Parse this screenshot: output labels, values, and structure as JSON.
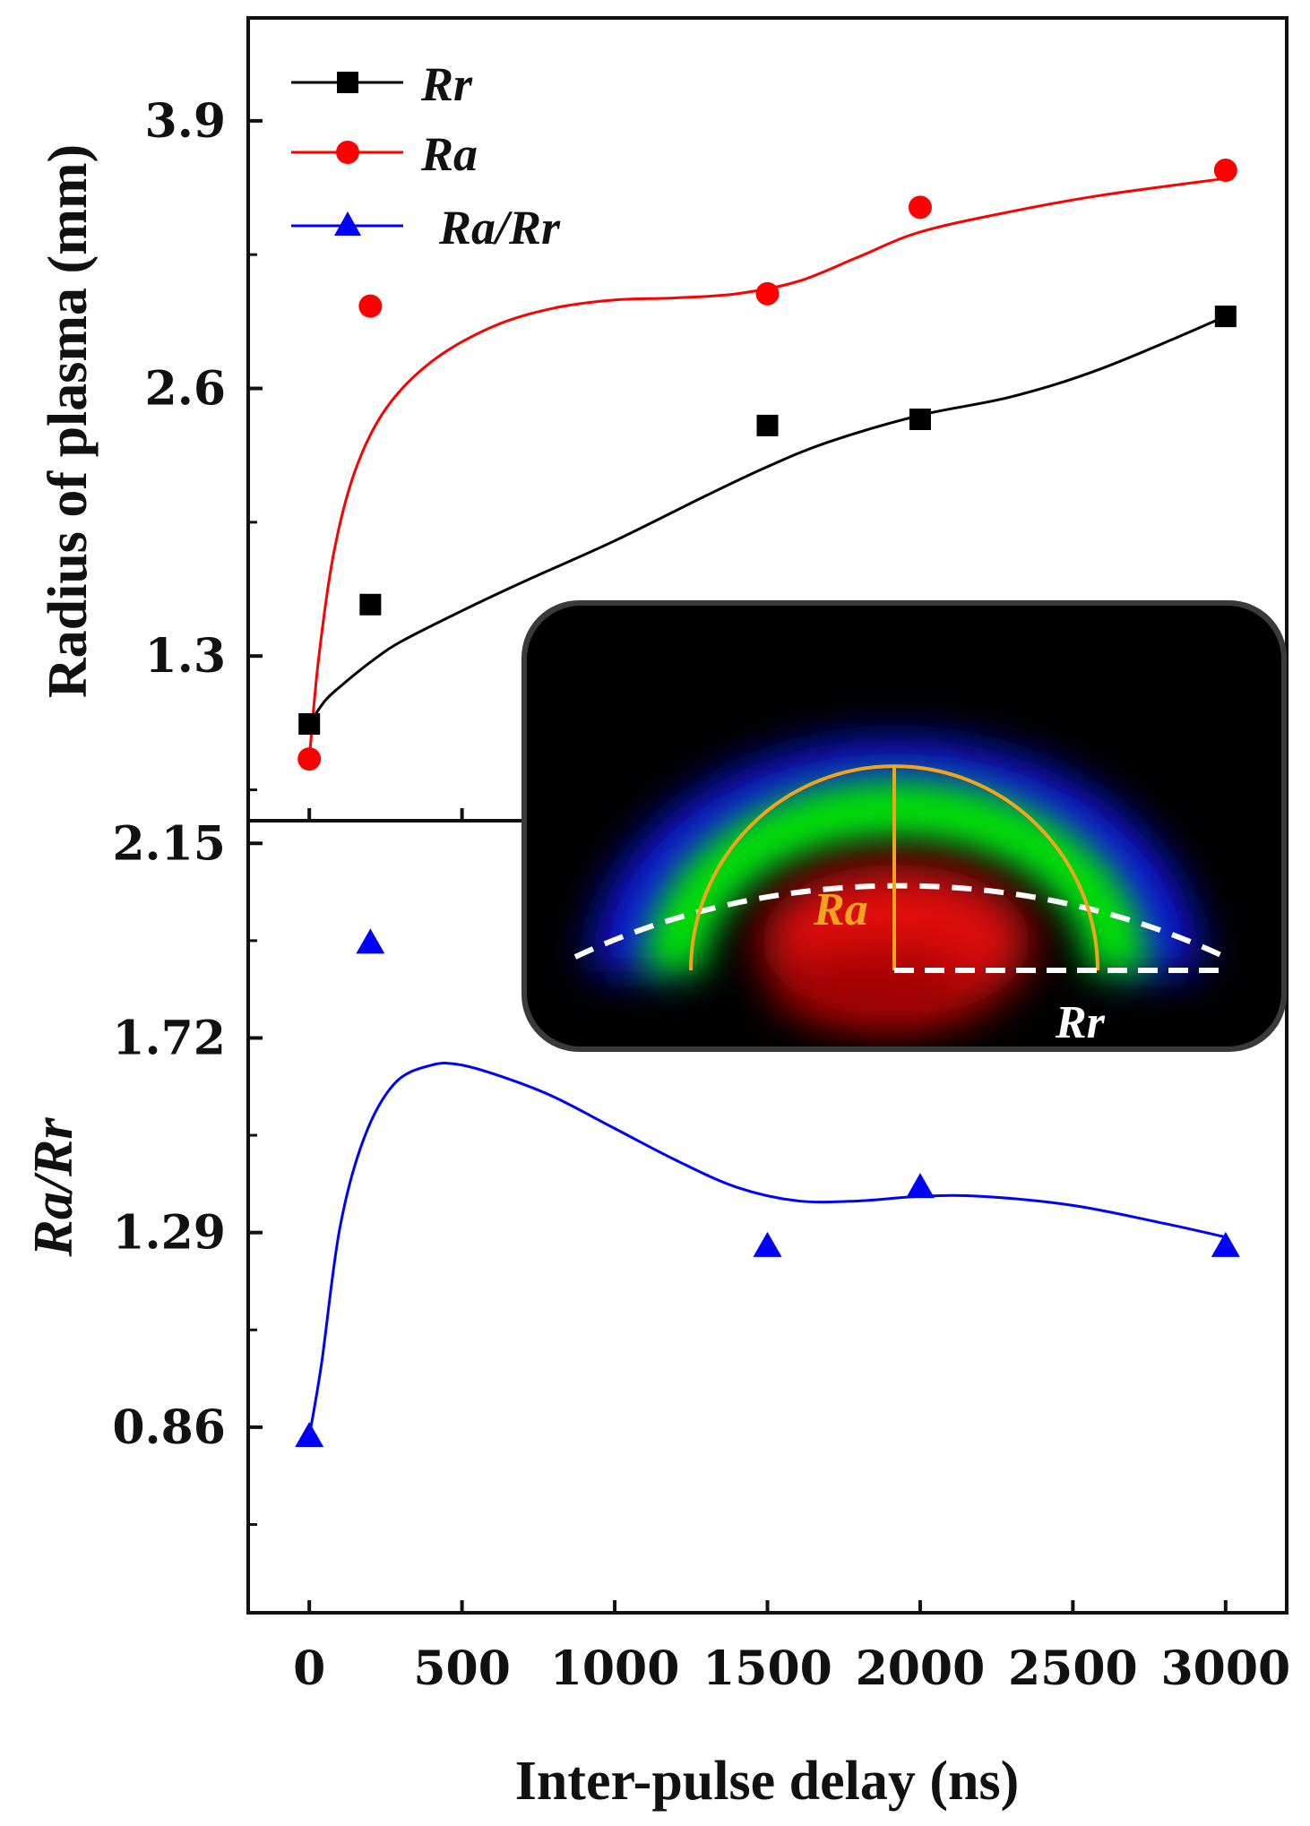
{
  "chart_data": [
    {
      "type": "scatter",
      "panel": "top",
      "ylabel": "Radius of plasma (mm)",
      "ylim": [
        0.5,
        4.4
      ],
      "yticks": [
        "1.3",
        "2.6",
        "3.9"
      ],
      "series": [
        {
          "name": "Rr",
          "color": "#000000",
          "marker": "square",
          "x": [
            0,
            200,
            1500,
            2000,
            3000
          ],
          "values": [
            0.97,
            1.55,
            2.42,
            2.45,
            2.95
          ],
          "fit": [
            [
              0,
              0.97
            ],
            [
              50,
              1.08
            ],
            [
              100,
              1.15
            ],
            [
              200,
              1.27
            ],
            [
              300,
              1.37
            ],
            [
              500,
              1.52
            ],
            [
              700,
              1.66
            ],
            [
              1000,
              1.86
            ],
            [
              1300,
              2.08
            ],
            [
              1500,
              2.22
            ],
            [
              1700,
              2.34
            ],
            [
              2000,
              2.47
            ],
            [
              2300,
              2.56
            ],
            [
              2600,
              2.7
            ],
            [
              3000,
              2.95
            ]
          ]
        },
        {
          "name": "Ra",
          "color": "#ff0000",
          "marker": "circle",
          "x": [
            0,
            200,
            1500,
            2000,
            3000
          ],
          "values": [
            0.8,
            3.0,
            3.06,
            3.48,
            3.66
          ],
          "fit": [
            [
              0,
              0.8
            ],
            [
              30,
              1.28
            ],
            [
              80,
              1.8
            ],
            [
              150,
              2.2
            ],
            [
              250,
              2.5
            ],
            [
              400,
              2.73
            ],
            [
              600,
              2.9
            ],
            [
              800,
              2.99
            ],
            [
              1000,
              3.03
            ],
            [
              1200,
              3.04
            ],
            [
              1400,
              3.06
            ],
            [
              1600,
              3.12
            ],
            [
              1800,
              3.24
            ],
            [
              2000,
              3.36
            ],
            [
              2300,
              3.46
            ],
            [
              2600,
              3.54
            ],
            [
              3000,
              3.62
            ]
          ]
        }
      ]
    },
    {
      "type": "scatter",
      "panel": "bottom",
      "xlabel": "Inter-pulse delay (ns)",
      "ylabel": "Ra/Rr",
      "xlim": [
        -200,
        3200
      ],
      "xticks": [
        "0",
        "500",
        "1000",
        "1500",
        "2000",
        "2500",
        "3000"
      ],
      "ylim": [
        0.45,
        2.2
      ],
      "yticks": [
        "0.86",
        "1.29",
        "1.72",
        "2.15"
      ],
      "series": [
        {
          "name": "Ra/Rr",
          "color": "#0000ff",
          "marker": "triangle",
          "x": [
            0,
            200,
            1500,
            2000,
            3000
          ],
          "values": [
            0.84,
            1.93,
            1.26,
            1.39,
            1.26
          ],
          "fit": [
            [
              0,
              0.84
            ],
            [
              40,
              1.0
            ],
            [
              100,
              1.3
            ],
            [
              180,
              1.5
            ],
            [
              280,
              1.62
            ],
            [
              400,
              1.66
            ],
            [
              500,
              1.66
            ],
            [
              650,
              1.63
            ],
            [
              800,
              1.59
            ],
            [
              1000,
              1.52
            ],
            [
              1200,
              1.45
            ],
            [
              1400,
              1.39
            ],
            [
              1600,
              1.36
            ],
            [
              1800,
              1.36
            ],
            [
              2000,
              1.37
            ],
            [
              2200,
              1.37
            ],
            [
              2500,
              1.35
            ],
            [
              2800,
              1.31
            ],
            [
              3000,
              1.28
            ]
          ]
        }
      ]
    }
  ],
  "legend": [
    {
      "label": "Rr",
      "color": "#000000",
      "marker": "square"
    },
    {
      "label": "Ra",
      "color": "#ff0000",
      "marker": "circle"
    },
    {
      "label": "Ra/Rr",
      "color": "#0000ff",
      "marker": "triangle"
    }
  ],
  "inset": {
    "ra_label": "Ra",
    "rr_label": "Rr",
    "ra_color": "#f2a51a",
    "rr_color": "#ffffff"
  }
}
